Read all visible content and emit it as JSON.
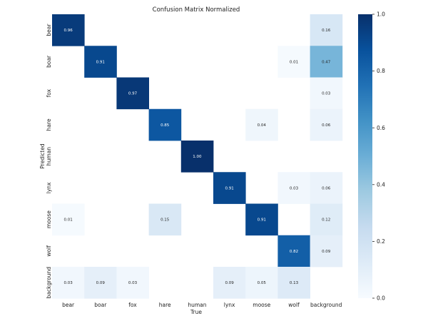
{
  "chart_data": {
    "type": "heatmap",
    "title": "Confusion Matrix Normalized",
    "xlabel": "True",
    "ylabel": "Predicted",
    "x_categories": [
      "bear",
      "boar",
      "fox",
      "hare",
      "human",
      "lynx",
      "moose",
      "wolf",
      "background"
    ],
    "y_categories": [
      "bear",
      "boar",
      "fox",
      "hare",
      "human",
      "lynx",
      "moose",
      "wolf",
      "background"
    ],
    "values": [
      [
        0.96,
        null,
        null,
        null,
        null,
        null,
        null,
        null,
        0.16
      ],
      [
        null,
        0.91,
        null,
        null,
        null,
        null,
        null,
        0.01,
        0.47
      ],
      [
        null,
        null,
        0.97,
        null,
        null,
        null,
        null,
        null,
        0.03
      ],
      [
        null,
        null,
        null,
        0.85,
        null,
        null,
        0.04,
        null,
        0.06
      ],
      [
        null,
        null,
        null,
        null,
        1.0,
        null,
        null,
        null,
        null
      ],
      [
        null,
        null,
        null,
        null,
        null,
        0.91,
        null,
        0.03,
        0.06
      ],
      [
        0.01,
        null,
        null,
        0.15,
        null,
        null,
        0.91,
        null,
        0.12
      ],
      [
        null,
        null,
        null,
        null,
        null,
        null,
        null,
        0.82,
        0.09
      ],
      [
        0.03,
        0.09,
        0.03,
        null,
        null,
        0.09,
        0.05,
        0.13,
        null
      ]
    ],
    "colorbar": {
      "range": [
        0.0,
        1.0
      ],
      "ticks": [
        "0.0",
        "0.2",
        "0.4",
        "0.6",
        "0.8",
        "1.0"
      ],
      "colormap": "Blues",
      "low_color": "#f7fbff",
      "high_color": "#08306b"
    },
    "value_format": "2 decimals",
    "grid": false
  }
}
